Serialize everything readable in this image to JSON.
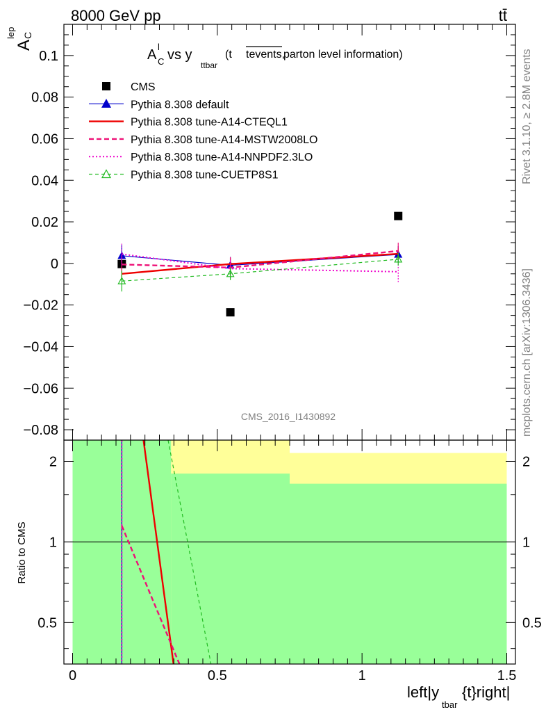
{
  "header": {
    "left": "8000 GeV pp",
    "right": "tt̄"
  },
  "side_labels": {
    "rivet": "Rivet 3.1.10, ≥ 2.8M events",
    "mcplots": "mcplots.cern.ch [arXiv:1306.3436]"
  },
  "watermark": "CMS_2016_I1430892",
  "plot_title": {
    "main_a": "A",
    "main_sub": "C",
    "main_sup": "l",
    "main_vs": " vs y",
    "main_vs_sub": "ttbar",
    "paren_open": " (t",
    "overline": "tevents,",
    "paren_rest": " parton level information)"
  },
  "y_axis_label": {
    "base": "A",
    "sub": "C",
    "sup": "lep"
  },
  "x_axis_label": {
    "pre": "left|y",
    "sub": "tbar",
    "post": "{t}right|"
  },
  "ratio_ylabel": "Ratio to CMS",
  "main_ticks": [
    "0.1",
    "0.08",
    "0.06",
    "0.04",
    "0.02",
    "0",
    "−0.02",
    "−0.04",
    "−0.06",
    "−0.08"
  ],
  "x_ticks": [
    "0",
    "0.5",
    "1",
    "1.5"
  ],
  "ratio_ticks": [
    "2",
    "1",
    "0.5"
  ],
  "chart_data": [
    {
      "type": "line",
      "panel": "main",
      "x": [
        0.17,
        0.545,
        1.125
      ],
      "ylim": [
        -0.085,
        0.115
      ],
      "xlim": [
        -0.03,
        1.53
      ],
      "series": [
        {
          "name": "CMS",
          "style": "marker-square",
          "color": "#000000",
          "values": [
            -0.0003,
            -0.0235,
            0.0228
          ],
          "err": [
            0.001,
            0.001,
            0.001
          ]
        },
        {
          "name": "Pythia 8.308 default",
          "style": "solid-triangle",
          "color": "#0000cc",
          "values": [
            0.0037,
            -0.0009,
            0.0043
          ],
          "err": [
            0.005,
            0.004,
            0.004
          ]
        },
        {
          "name": "Pythia 8.308 tune-A14-CTEQL1",
          "style": "solid-thick",
          "color": "#ee0000",
          "values": [
            -0.005,
            -0.0003,
            0.0046
          ],
          "err": [
            0.003,
            0.003,
            0.003
          ]
        },
        {
          "name": "Pythia 8.308 tune-A14-MSTW2008LO",
          "style": "dashed-thick",
          "color": "#ee1177",
          "values": [
            -0.0005,
            -0.002,
            0.006
          ],
          "err": [
            0.004,
            0.005,
            0.004
          ]
        },
        {
          "name": "Pythia 8.308 tune-A14-NNPDF2.3LO",
          "style": "dotted",
          "color": "#ee00cc",
          "values": [
            0.0045,
            -0.0025,
            -0.004
          ],
          "err": [
            0.005,
            0.004,
            0.005
          ]
        },
        {
          "name": "Pythia 8.308 tune-CUETP8S1",
          "style": "dashed-open-triangle",
          "color": "#22bb22",
          "values": [
            -0.0085,
            -0.005,
            0.002
          ],
          "err": [
            0.005,
            0.003,
            0.003
          ]
        }
      ],
      "legend_placement": "top-left"
    },
    {
      "type": "area",
      "panel": "ratio",
      "ylim_log": [
        0.35,
        2.4
      ],
      "bins": [
        [
          0.0,
          0.34
        ],
        [
          0.34,
          0.75
        ],
        [
          0.75,
          1.5
        ]
      ],
      "band_green": [
        [
          0.34,
          2.4
        ],
        [
          0.34,
          1.8
        ],
        [
          0.34,
          1.65
        ]
      ],
      "band_yellow": [
        [
          0.34,
          2.4
        ],
        [
          0.34,
          2.4
        ],
        [
          0.34,
          2.15
        ]
      ],
      "series": [
        {
          "name": "Pythia 8.308 default",
          "color": "#0000cc",
          "points": [
            [
              0.17,
              0.3
            ],
            [
              0.17,
              2.4
            ]
          ]
        },
        {
          "name": "Pythia 8.308 tune-A14-NNPDF2.3LO",
          "color": "#ee00cc",
          "points": [
            [
              0.17,
              0.3
            ],
            [
              0.17,
              2.4
            ]
          ]
        },
        {
          "name": "Pythia 8.308 tune-A14-CTEQL1",
          "color": "#ee0000",
          "points": [
            [
              0.245,
              2.4
            ],
            [
              0.357,
              0.3
            ]
          ]
        },
        {
          "name": "Pythia 8.308 tune-A14-MSTW2008LO",
          "color": "#ee1177",
          "points": [
            [
              0.17,
              1.15
            ],
            [
              0.395,
              0.3
            ]
          ]
        },
        {
          "name": "Pythia 8.308 tune-CUETP8S1",
          "color": "#22bb22",
          "points": [
            [
              0.33,
              2.4
            ],
            [
              0.49,
              0.3
            ]
          ]
        }
      ]
    }
  ]
}
